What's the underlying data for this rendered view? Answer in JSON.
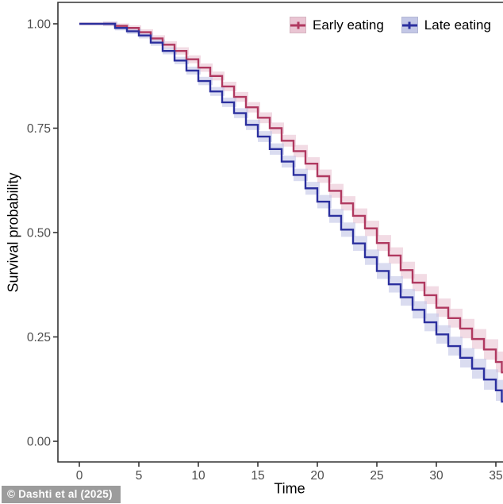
{
  "attribution": {
    "text": "© Dashti et al (2025)"
  },
  "chart_data": {
    "type": "line",
    "subtype": "kaplan-meier-step",
    "title": "",
    "xlabel": "Time",
    "ylabel": "Survival probability",
    "xlim": [
      -1.8,
      35.6
    ],
    "ylim": [
      -0.055,
      1.052
    ],
    "x_ticks": [
      0,
      5,
      10,
      15,
      20,
      25,
      30,
      35
    ],
    "y_ticks": [
      "0.00",
      "0.25",
      "0.50",
      "0.75",
      "1.00"
    ],
    "grid": "off",
    "legend_position": "top-right-inside",
    "axis_color": "#333333",
    "tick_label_color": "#4d4d4d",
    "series": [
      {
        "name": "Early eating",
        "color": "#b03960",
        "fill": "#eac5d3",
        "ci_base": 0.004,
        "ci_per_t": 0.0006,
        "points": [
          [
            0,
            1.0
          ],
          [
            1,
            1.0
          ],
          [
            2,
            1.0
          ],
          [
            3,
            0.995
          ],
          [
            4,
            0.99
          ],
          [
            5,
            0.98
          ],
          [
            6,
            0.965
          ],
          [
            7,
            0.95
          ],
          [
            8,
            0.935
          ],
          [
            9,
            0.915
          ],
          [
            10,
            0.895
          ],
          [
            11,
            0.875
          ],
          [
            12,
            0.85
          ],
          [
            13,
            0.825
          ],
          [
            14,
            0.8
          ],
          [
            15,
            0.775
          ],
          [
            16,
            0.75
          ],
          [
            17,
            0.72
          ],
          [
            18,
            0.695
          ],
          [
            19,
            0.665
          ],
          [
            20,
            0.635
          ],
          [
            21,
            0.6
          ],
          [
            22,
            0.57
          ],
          [
            23,
            0.54
          ],
          [
            24,
            0.51
          ],
          [
            25,
            0.475
          ],
          [
            26,
            0.445
          ],
          [
            27,
            0.41
          ],
          [
            28,
            0.38
          ],
          [
            29,
            0.35
          ],
          [
            30,
            0.32
          ],
          [
            31,
            0.295
          ],
          [
            32,
            0.27
          ],
          [
            33,
            0.245
          ],
          [
            34,
            0.22
          ],
          [
            35,
            0.19
          ],
          [
            35.5,
            0.165
          ]
        ]
      },
      {
        "name": "Late eating",
        "color": "#2b2f9e",
        "fill": "#c3c7e6",
        "ci_base": 0.004,
        "ci_per_t": 0.0006,
        "points": [
          [
            0,
            1.0
          ],
          [
            1,
            1.0
          ],
          [
            2,
            1.0
          ],
          [
            3,
            0.99
          ],
          [
            4,
            0.982
          ],
          [
            5,
            0.972
          ],
          [
            6,
            0.955
          ],
          [
            7,
            0.935
          ],
          [
            8,
            0.912
          ],
          [
            9,
            0.888
          ],
          [
            10,
            0.863
          ],
          [
            11,
            0.838
          ],
          [
            12,
            0.812
          ],
          [
            13,
            0.786
          ],
          [
            14,
            0.758
          ],
          [
            15,
            0.73
          ],
          [
            16,
            0.7
          ],
          [
            17,
            0.67
          ],
          [
            18,
            0.638
          ],
          [
            19,
            0.606
          ],
          [
            20,
            0.574
          ],
          [
            21,
            0.54
          ],
          [
            22,
            0.507
          ],
          [
            23,
            0.474
          ],
          [
            24,
            0.441
          ],
          [
            25,
            0.408
          ],
          [
            26,
            0.376
          ],
          [
            27,
            0.345
          ],
          [
            28,
            0.315
          ],
          [
            29,
            0.285
          ],
          [
            30,
            0.256
          ],
          [
            31,
            0.228
          ],
          [
            32,
            0.2
          ],
          [
            33,
            0.174
          ],
          [
            34,
            0.148
          ],
          [
            35,
            0.122
          ],
          [
            35.5,
            0.095
          ]
        ]
      }
    ]
  }
}
